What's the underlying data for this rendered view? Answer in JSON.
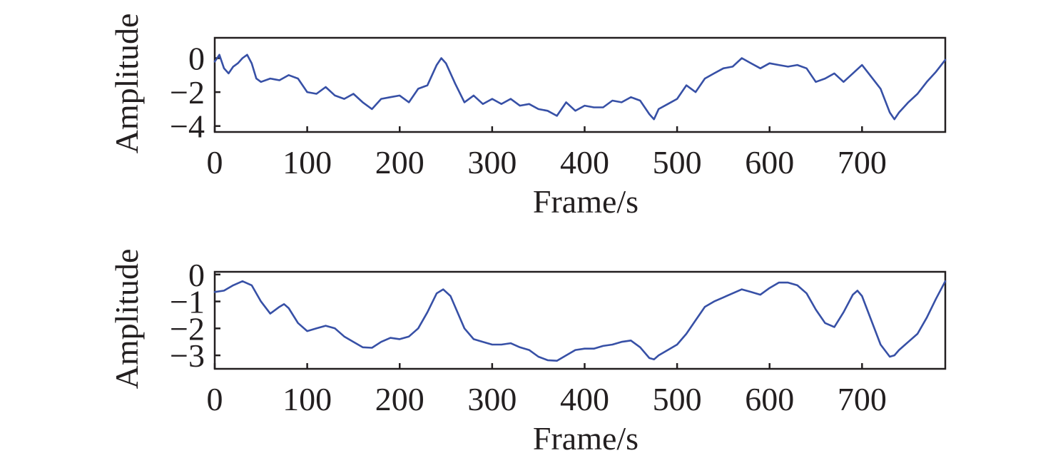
{
  "colors": {
    "series": "#3750a6",
    "axis": "#231f20"
  },
  "chart_data": [
    {
      "type": "line",
      "xlabel": "Frame/s",
      "ylabel": "Amplitude",
      "xlim": [
        0,
        790
      ],
      "ylim": [
        -4.35,
        1.2
      ],
      "xticks": [
        0,
        100,
        200,
        300,
        400,
        500,
        600,
        700
      ],
      "xtick_labels": [
        "0",
        "100",
        "200",
        "300",
        "400",
        "500",
        "600",
        "700"
      ],
      "yticks": [
        0,
        -2,
        -4
      ],
      "ytick_labels": [
        "0",
        "−2",
        "−4"
      ],
      "grid": false,
      "series": [
        {
          "x": [
            0,
            5,
            10,
            15,
            20,
            25,
            30,
            35,
            40,
            45,
            50,
            60,
            70,
            80,
            90,
            100,
            110,
            120,
            130,
            140,
            150,
            160,
            170,
            180,
            190,
            200,
            210,
            220,
            230,
            240,
            245,
            250,
            260,
            270,
            280,
            290,
            300,
            310,
            320,
            330,
            340,
            350,
            360,
            370,
            380,
            390,
            400,
            410,
            420,
            430,
            440,
            450,
            460,
            470,
            475,
            480,
            490,
            500,
            510,
            520,
            530,
            540,
            550,
            560,
            570,
            580,
            590,
            600,
            610,
            620,
            630,
            640,
            650,
            660,
            670,
            680,
            690,
            700,
            710,
            720,
            730,
            735,
            740,
            750,
            760,
            770,
            780,
            790
          ],
          "y": [
            -0.2,
            0.2,
            -0.6,
            -0.9,
            -0.5,
            -0.3,
            0.0,
            0.2,
            -0.3,
            -1.2,
            -1.4,
            -1.2,
            -1.3,
            -1.0,
            -1.2,
            -2.0,
            -2.1,
            -1.7,
            -2.2,
            -2.4,
            -2.1,
            -2.6,
            -3.0,
            -2.4,
            -2.3,
            -2.2,
            -2.6,
            -1.8,
            -1.6,
            -0.4,
            0.0,
            -0.3,
            -1.5,
            -2.6,
            -2.2,
            -2.7,
            -2.4,
            -2.7,
            -2.4,
            -2.8,
            -2.7,
            -3.0,
            -3.1,
            -3.4,
            -2.6,
            -3.1,
            -2.8,
            -2.9,
            -2.9,
            -2.5,
            -2.6,
            -2.3,
            -2.5,
            -3.3,
            -3.6,
            -3.0,
            -2.7,
            -2.4,
            -1.6,
            -2.0,
            -1.2,
            -0.9,
            -0.6,
            -0.5,
            0.0,
            -0.3,
            -0.6,
            -0.3,
            -0.4,
            -0.5,
            -0.4,
            -0.6,
            -1.4,
            -1.2,
            -0.9,
            -1.4,
            -0.9,
            -0.4,
            -1.1,
            -1.8,
            -3.2,
            -3.6,
            -3.2,
            -2.6,
            -2.1,
            -1.4,
            -0.8,
            -0.1
          ]
        }
      ]
    },
    {
      "type": "line",
      "xlabel": "Frame/s",
      "ylabel": "Amplitude",
      "xlim": [
        0,
        790
      ],
      "ylim": [
        -3.5,
        0.1
      ],
      "xticks": [
        0,
        100,
        200,
        300,
        400,
        500,
        600,
        700
      ],
      "xtick_labels": [
        "0",
        "100",
        "200",
        "300",
        "400",
        "500",
        "600",
        "700"
      ],
      "yticks": [
        0,
        -1,
        -2,
        -3
      ],
      "ytick_labels": [
        "0",
        "−1",
        "−2",
        "−3"
      ],
      "grid": false,
      "series": [
        {
          "x": [
            0,
            10,
            20,
            30,
            40,
            50,
            60,
            70,
            75,
            80,
            90,
            100,
            110,
            120,
            130,
            140,
            150,
            160,
            170,
            180,
            190,
            200,
            210,
            220,
            230,
            240,
            247,
            255,
            260,
            270,
            280,
            290,
            300,
            310,
            320,
            330,
            340,
            350,
            360,
            370,
            380,
            390,
            400,
            410,
            420,
            430,
            440,
            450,
            460,
            470,
            475,
            480,
            490,
            500,
            510,
            520,
            530,
            540,
            550,
            560,
            570,
            580,
            590,
            600,
            610,
            620,
            630,
            640,
            650,
            660,
            670,
            680,
            690,
            695,
            700,
            710,
            720,
            730,
            735,
            740,
            750,
            760,
            770,
            780,
            790
          ],
          "y": [
            -0.65,
            -0.6,
            -0.4,
            -0.25,
            -0.4,
            -1.0,
            -1.45,
            -1.2,
            -1.1,
            -1.25,
            -1.8,
            -2.1,
            -2.0,
            -1.9,
            -2.0,
            -2.3,
            -2.5,
            -2.7,
            -2.72,
            -2.5,
            -2.35,
            -2.4,
            -2.3,
            -2.0,
            -1.4,
            -0.7,
            -0.55,
            -0.8,
            -1.2,
            -2.0,
            -2.4,
            -2.5,
            -2.6,
            -2.6,
            -2.55,
            -2.7,
            -2.8,
            -3.05,
            -3.18,
            -3.2,
            -3.0,
            -2.8,
            -2.75,
            -2.75,
            -2.65,
            -2.6,
            -2.5,
            -2.45,
            -2.7,
            -3.1,
            -3.15,
            -3.0,
            -2.8,
            -2.6,
            -2.2,
            -1.7,
            -1.2,
            -1.0,
            -0.85,
            -0.7,
            -0.55,
            -0.65,
            -0.75,
            -0.5,
            -0.3,
            -0.3,
            -0.4,
            -0.7,
            -1.3,
            -1.8,
            -1.95,
            -1.4,
            -0.75,
            -0.6,
            -0.8,
            -1.7,
            -2.6,
            -3.05,
            -3.0,
            -2.8,
            -2.5,
            -2.2,
            -1.6,
            -0.9,
            -0.25
          ]
        }
      ]
    }
  ]
}
